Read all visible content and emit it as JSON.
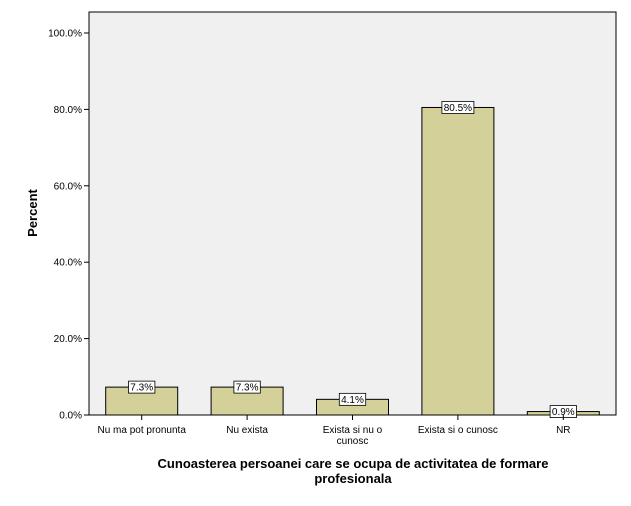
{
  "chart_data": {
    "type": "bar",
    "categories": [
      "Nu ma pot pronunta",
      "Nu exista",
      "Exista si nu o cunosc",
      "Exista si o cunosc",
      "NR"
    ],
    "category_lines": [
      [
        "Nu ma pot pronunta"
      ],
      [
        "Nu exista"
      ],
      [
        "Exista si nu o",
        "cunosc"
      ],
      [
        "Exista si o cunosc"
      ],
      [
        "NR"
      ]
    ],
    "values": [
      7.3,
      7.3,
      4.1,
      80.5,
      0.9
    ],
    "data_labels": [
      "7.3%",
      "7.3%",
      "4.1%",
      "80.5%",
      "0.9%"
    ],
    "ylabel": "Percent",
    "xlabel_lines": [
      "Cunoasterea persoanei care se ocupa de activitatea de formare",
      "profesionala"
    ],
    "ylim": [
      0,
      100
    ],
    "yticks": [
      0,
      20,
      40,
      60,
      80,
      100
    ],
    "ytick_labels": [
      "0.0%",
      "20.0%",
      "40.0%",
      "60.0%",
      "80.0%",
      "100.0%"
    ],
    "grid": false,
    "colors": {
      "bar_fill": "#d4d09a",
      "bar_stroke": "#000000",
      "plot_bg": "#f0f0f0"
    }
  }
}
